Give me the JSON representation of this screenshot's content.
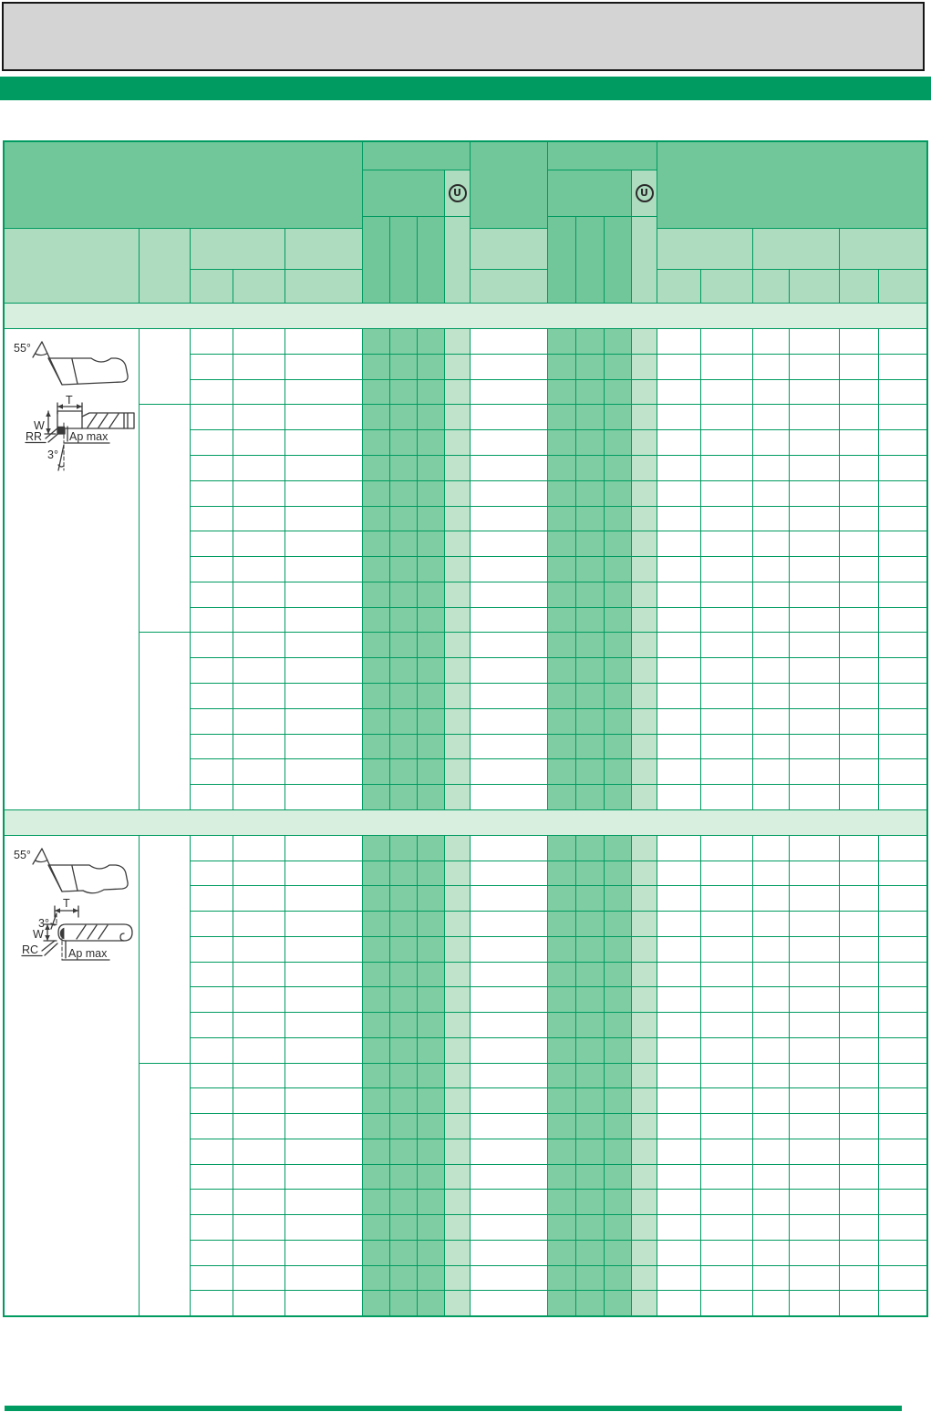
{
  "table": {
    "u_mark": "U",
    "sections": [
      {
        "labels": {
          "point_angle": "55°",
          "thickness": "T",
          "width": "W",
          "corner": "RR",
          "depth": "Ap max",
          "clearance": "3°"
        }
      },
      {
        "labels": {
          "point_angle": "55°",
          "thickness": "T",
          "width": "W",
          "corner": "RC",
          "depth": "Ap max",
          "clearance": "3°"
        }
      }
    ]
  },
  "colors": {
    "brand_green": "#009B61",
    "line_green": "#009B61",
    "header_green": "#71C79A",
    "header_light": "#AEDCBF",
    "body_green": "#7FCEA3",
    "body_light": "#C0E4CB",
    "band_green": "#D8EEDE",
    "banner_gray": "#D4D4D4"
  }
}
